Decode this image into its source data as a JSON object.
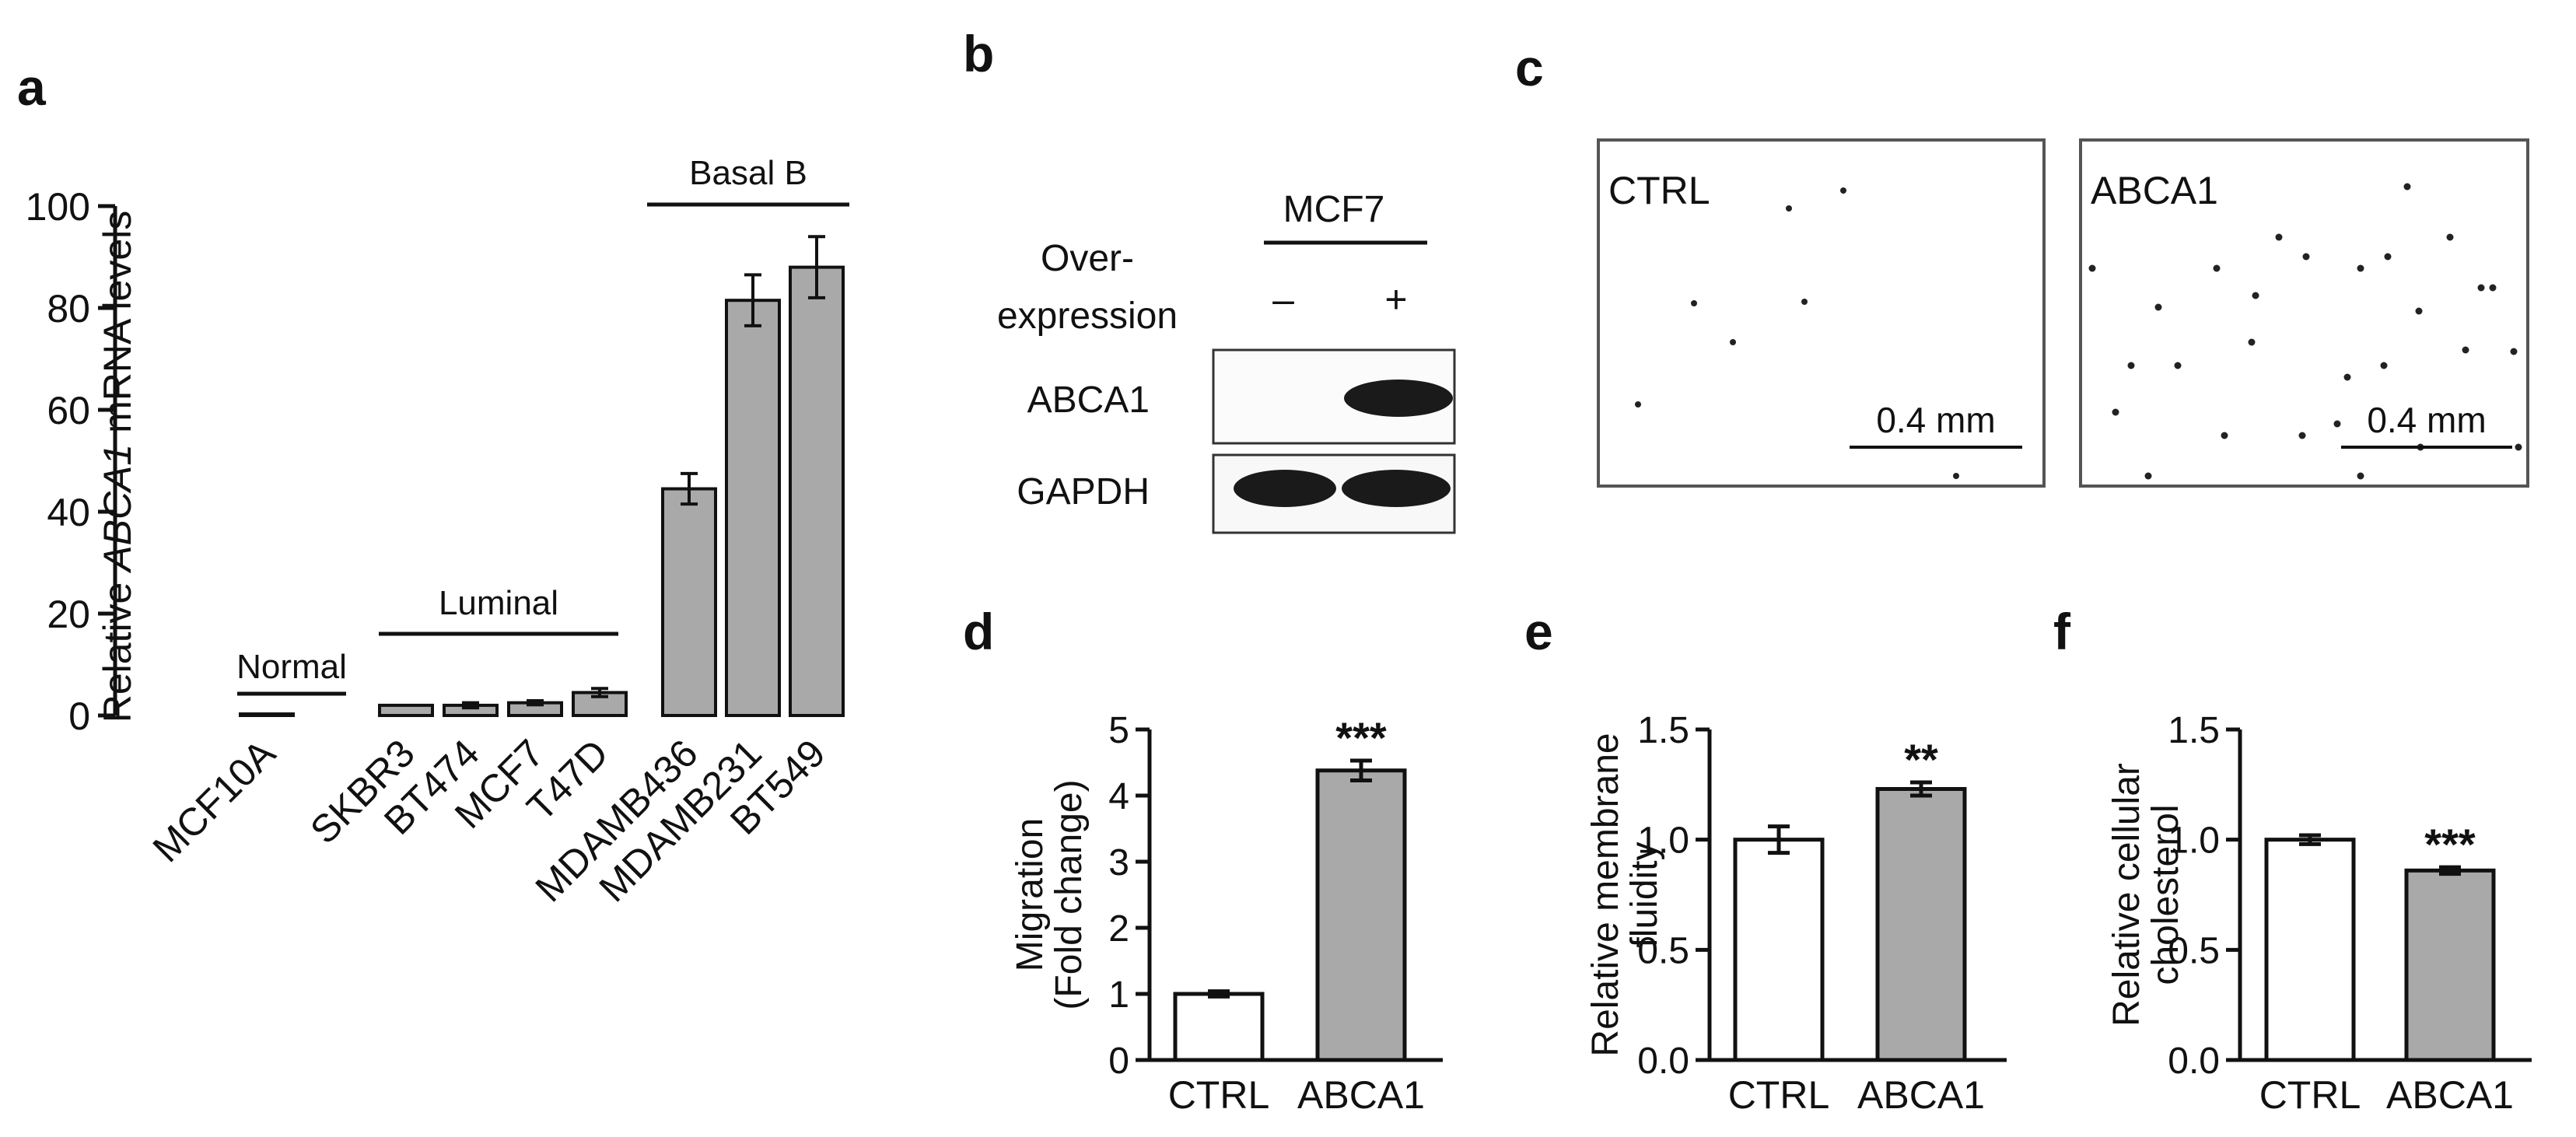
{
  "panels": {
    "a": "a",
    "b": "b",
    "c": "c",
    "d": "d",
    "e": "e",
    "f": "f"
  },
  "colors": {
    "gray_bar": "#a9a9a9",
    "white_bar": "#ffffff",
    "ink": "#111111"
  },
  "blot": {
    "cell_line": "MCF7",
    "condition_line1": "Over-",
    "condition_line2": "expression",
    "minus": "–",
    "plus": "+",
    "rows": [
      "ABCA1",
      "GAPDH"
    ]
  },
  "images": [
    {
      "label": "CTRL",
      "scalebar": "0.4 mm"
    },
    {
      "label": "ABCA1",
      "scalebar": "0.4 mm"
    }
  ],
  "chart_data": [
    {
      "id": "a",
      "type": "bar",
      "categories": [
        "MCF10A",
        "SKBR3",
        "BT474",
        "MCF7",
        "T47D",
        "MDAMB436",
        "MDAMB231",
        "BT549"
      ],
      "values": [
        0.3,
        2,
        2,
        2.5,
        4.5,
        44.5,
        81.5,
        88
      ],
      "errors": [
        0.3,
        0.3,
        0.5,
        0.4,
        0.8,
        3,
        5,
        6
      ],
      "ylabel_pre": "Relative ",
      "ylabel_italic": "ABCA1",
      "ylabel_post": " mRNA levels",
      "ylim": [
        0,
        100
      ],
      "yticks": [
        0,
        20,
        40,
        60,
        80,
        100
      ],
      "groups": [
        {
          "label": "Normal",
          "from": 0,
          "to": 0
        },
        {
          "label": "Luminal",
          "from": 1,
          "to": 4
        },
        {
          "label": "Basal B",
          "from": 5,
          "to": 7
        }
      ]
    },
    {
      "id": "d",
      "type": "bar",
      "categories": [
        "CTRL",
        "ABCA1"
      ],
      "values": [
        1.0,
        4.38
      ],
      "errors": [
        0.04,
        0.15
      ],
      "significance": [
        "",
        "***"
      ],
      "ylabel": [
        "Migration",
        "(Fold change)"
      ],
      "ylim": [
        0,
        5
      ],
      "yticks": [
        "0",
        "1",
        "2",
        "3",
        "4",
        "5"
      ]
    },
    {
      "id": "e",
      "type": "bar",
      "categories": [
        "CTRL",
        "ABCA1"
      ],
      "values": [
        1.0,
        1.23
      ],
      "errors": [
        0.06,
        0.03
      ],
      "significance": [
        "",
        "**"
      ],
      "ylabel": [
        "Relative membrane",
        "fluidity"
      ],
      "ylim": [
        0,
        1.5
      ],
      "yticks": [
        "0.0",
        "0.5",
        "1.0",
        "1.5"
      ]
    },
    {
      "id": "f",
      "type": "bar",
      "categories": [
        "CTRL",
        "ABCA1"
      ],
      "values": [
        1.0,
        0.86
      ],
      "errors": [
        0.02,
        0.015
      ],
      "significance": [
        "",
        "***"
      ],
      "ylabel": [
        "Relative cellular",
        "cholesterol"
      ],
      "ylim": [
        0,
        1.5
      ],
      "yticks": [
        "0.0",
        "0.5",
        "1.0",
        "1.5"
      ]
    }
  ]
}
